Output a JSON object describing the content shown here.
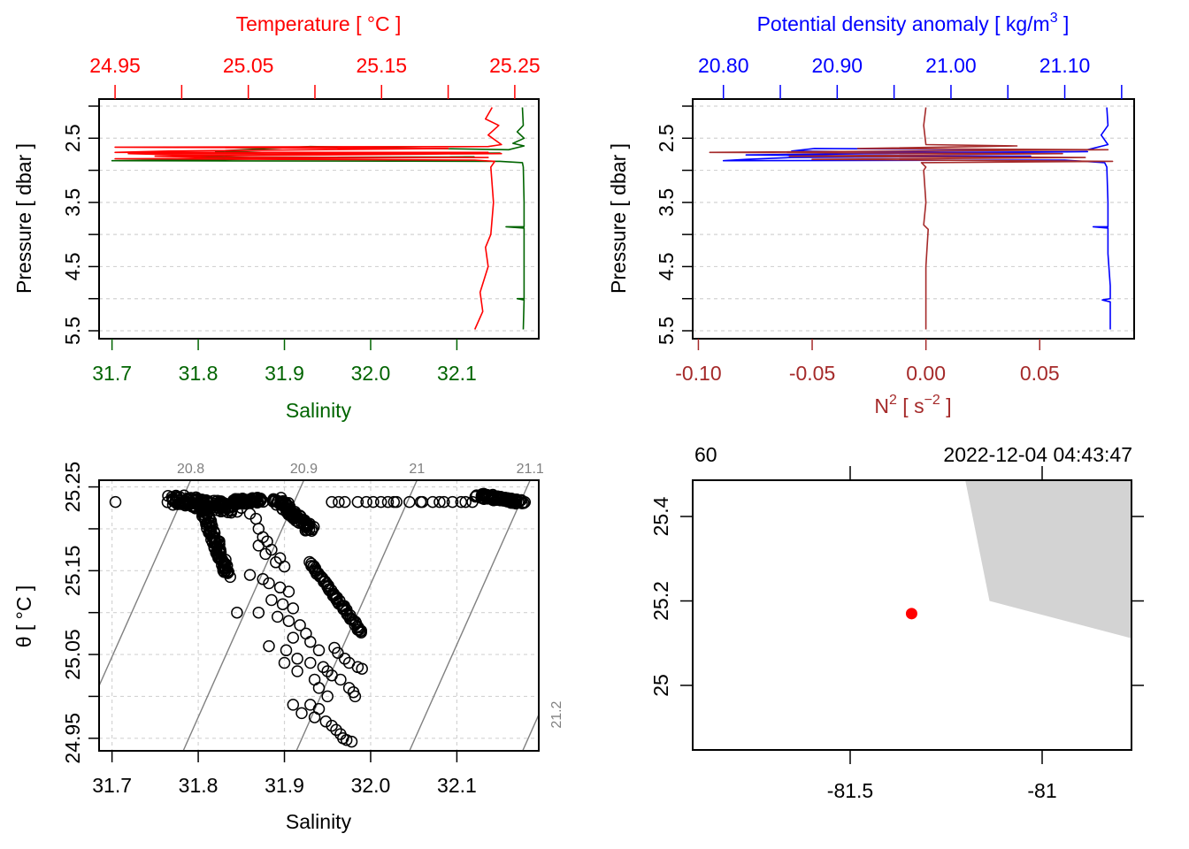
{
  "chart_data": [
    {
      "id": "ts_profile",
      "type": "line",
      "title": "",
      "ylabel": "Pressure [ dbar ]",
      "ylim": [
        2.0,
        5.5
      ],
      "y_reversed": true,
      "y_ticks": [
        2.0,
        2.5,
        3.0,
        3.5,
        4.0,
        4.5,
        5.0,
        5.5
      ],
      "y_tick_labels": [
        "",
        "2.5",
        "",
        "3.5",
        "",
        "4.5",
        "",
        "5.5"
      ],
      "grid": true,
      "bottom_axis": {
        "label": "Salinity",
        "color": "#006400",
        "range": [
          31.685,
          32.195
        ],
        "ticks": [
          31.7,
          31.8,
          31.9,
          32.0,
          32.1
        ],
        "tick_labels": [
          "31.7",
          "31.8",
          "31.9",
          "32.0",
          "32.1"
        ]
      },
      "top_axis": {
        "label": "Temperature [ °C ]",
        "color": "#ff0000",
        "range": [
          24.938,
          25.268
        ],
        "ticks": [
          24.95,
          25.0,
          25.05,
          25.1,
          25.15,
          25.2,
          25.25
        ],
        "tick_labels": [
          "24.95",
          "",
          "25.05",
          "",
          "25.15",
          "",
          "25.25"
        ]
      },
      "series": [
        {
          "name": "Salinity",
          "color": "#006400",
          "axis": "bottom",
          "points": [
            [
              32.176,
              2.02
            ],
            [
              32.177,
              2.3
            ],
            [
              32.17,
              2.4
            ],
            [
              32.178,
              2.5
            ],
            [
              32.165,
              2.58
            ],
            [
              32.178,
              2.62
            ],
            [
              32.16,
              2.68
            ],
            [
              31.93,
              2.63
            ],
            [
              31.82,
              2.7
            ],
            [
              31.9,
              2.73
            ],
            [
              32.0,
              2.75
            ],
            [
              32.15,
              2.73
            ],
            [
              31.87,
              2.76
            ],
            [
              31.8,
              2.78
            ],
            [
              31.86,
              2.8
            ],
            [
              32.12,
              2.79
            ],
            [
              31.88,
              2.82
            ],
            [
              31.84,
              2.83
            ],
            [
              31.7,
              2.85
            ],
            [
              32.15,
              2.86
            ],
            [
              32.176,
              2.88
            ],
            [
              32.177,
              2.95
            ],
            [
              32.178,
              3.5
            ],
            [
              32.178,
              3.88
            ],
            [
              32.157,
              3.88
            ],
            [
              32.178,
              3.9
            ],
            [
              32.178,
              4.2
            ],
            [
              32.178,
              4.6
            ],
            [
              32.178,
              5.0
            ],
            [
              32.17,
              5.0
            ],
            [
              32.178,
              5.02
            ],
            [
              32.177,
              5.48
            ]
          ]
        },
        {
          "name": "Temperature",
          "color": "#ff0000",
          "axis": "top",
          "points": [
            [
              25.233,
              2.02
            ],
            [
              25.228,
              2.2
            ],
            [
              25.238,
              2.3
            ],
            [
              25.23,
              2.45
            ],
            [
              25.24,
              2.6
            ],
            [
              25.23,
              2.63
            ],
            [
              24.95,
              2.64
            ],
            [
              25.2,
              2.66
            ],
            [
              24.99,
              2.7
            ],
            [
              24.95,
              2.72
            ],
            [
              25.23,
              2.72
            ],
            [
              24.96,
              2.74
            ],
            [
              25.0,
              2.76
            ],
            [
              25.24,
              2.74
            ],
            [
              24.98,
              2.78
            ],
            [
              25.02,
              2.8
            ],
            [
              25.23,
              2.8
            ],
            [
              24.95,
              2.82
            ],
            [
              25.22,
              2.84
            ],
            [
              25.235,
              2.86
            ],
            [
              25.232,
              2.95
            ],
            [
              25.234,
              3.5
            ],
            [
              25.232,
              4.0
            ],
            [
              25.228,
              4.2
            ],
            [
              25.23,
              4.5
            ],
            [
              25.224,
              4.9
            ],
            [
              25.226,
              5.2
            ],
            [
              25.22,
              5.48
            ]
          ]
        }
      ]
    },
    {
      "id": "density_n2_profile",
      "type": "line",
      "title": "",
      "ylabel": "Pressure [ dbar ]",
      "ylim": [
        2.0,
        5.5
      ],
      "y_reversed": true,
      "y_ticks": [
        2.0,
        2.5,
        3.0,
        3.5,
        4.0,
        4.5,
        5.0,
        5.5
      ],
      "y_tick_labels": [
        "",
        "2.5",
        "",
        "3.5",
        "",
        "4.5",
        "",
        "5.5"
      ],
      "grid": true,
      "bottom_axis": {
        "label_main": "N",
        "label_sup": "2",
        "label_rest": " [ s",
        "label_sup2": "−2",
        "label_end": " ]",
        "color": "#a52a2a",
        "range": [
          -0.1025,
          0.0915
        ],
        "ticks": [
          -0.1,
          -0.05,
          0.0,
          0.05
        ],
        "tick_labels": [
          "-0.10",
          "-0.05",
          "0.00",
          "0.05"
        ]
      },
      "top_axis": {
        "label_main": "Potential density anomaly [ kg/m",
        "label_sup": "3",
        "label_end": " ]",
        "color": "#0000ff",
        "range": [
          20.773,
          21.161
        ],
        "ticks": [
          20.8,
          20.85,
          20.9,
          20.95,
          21.0,
          21.05,
          21.1,
          21.15
        ],
        "tick_labels": [
          "20.80",
          "",
          "20.90",
          "",
          "21.00",
          "",
          "21.10",
          ""
        ]
      },
      "series": [
        {
          "name": "Potential density anomaly",
          "color": "#0000ff",
          "axis": "top",
          "points": [
            [
              21.137,
              2.02
            ],
            [
              21.138,
              2.3
            ],
            [
              21.132,
              2.45
            ],
            [
              21.138,
              2.6
            ],
            [
              21.12,
              2.68
            ],
            [
              21.06,
              2.68
            ],
            [
              20.88,
              2.66
            ],
            [
              20.86,
              2.7
            ],
            [
              20.99,
              2.72
            ],
            [
              21.12,
              2.71
            ],
            [
              20.88,
              2.75
            ],
            [
              20.82,
              2.76
            ],
            [
              20.95,
              2.78
            ],
            [
              21.07,
              2.78
            ],
            [
              20.86,
              2.8
            ],
            [
              20.82,
              2.83
            ],
            [
              20.8,
              2.85
            ],
            [
              21.1,
              2.84
            ],
            [
              21.135,
              2.88
            ],
            [
              21.137,
              2.95
            ],
            [
              21.138,
              3.5
            ],
            [
              21.138,
              3.88
            ],
            [
              21.125,
              3.88
            ],
            [
              21.138,
              3.9
            ],
            [
              21.138,
              4.3
            ],
            [
              21.14,
              4.8
            ],
            [
              21.14,
              5.0
            ],
            [
              21.133,
              5.02
            ],
            [
              21.14,
              5.05
            ],
            [
              21.14,
              5.48
            ]
          ]
        },
        {
          "name": "N2",
          "color": "#a52a2a",
          "axis": "bottom",
          "points": [
            [
              0.0,
              2.02
            ],
            [
              -0.001,
              2.3
            ],
            [
              0.0,
              2.6
            ],
            [
              0.04,
              2.62
            ],
            [
              -0.03,
              2.66
            ],
            [
              0.08,
              2.68
            ],
            [
              -0.095,
              2.72
            ],
            [
              0.06,
              2.74
            ],
            [
              -0.06,
              2.78
            ],
            [
              0.07,
              2.8
            ],
            [
              -0.05,
              2.83
            ],
            [
              0.082,
              2.86
            ],
            [
              -0.002,
              2.88
            ],
            [
              0.0,
              2.95
            ],
            [
              -0.001,
              3.0
            ],
            [
              0.0,
              3.5
            ],
            [
              -0.001,
              3.85
            ],
            [
              0.001,
              3.92
            ],
            [
              0.0,
              4.5
            ],
            [
              0.0,
              5.48
            ]
          ]
        }
      ]
    },
    {
      "id": "ts_diagram",
      "type": "scatter",
      "title": "",
      "xlabel": "Salinity",
      "ylabel": "θ [ °C ]",
      "xlim": [
        31.685,
        32.195
      ],
      "ylim": [
        24.935,
        25.258
      ],
      "x_ticks": [
        31.7,
        31.8,
        31.9,
        32.0,
        32.1
      ],
      "x_tick_labels": [
        "31.7",
        "31.8",
        "31.9",
        "32.0",
        "32.1"
      ],
      "y_ticks": [
        24.95,
        25.0,
        25.05,
        25.1,
        25.15,
        25.2,
        25.25
      ],
      "y_tick_labels": [
        "24.95",
        "",
        "25.05",
        "",
        "25.15",
        "",
        "25.25"
      ],
      "grid": true,
      "isopycnals": [
        {
          "label": "20.8",
          "sigma": 20.8
        },
        {
          "label": "20.9",
          "sigma": 20.9
        },
        {
          "label": "21",
          "sigma": 21.0
        },
        {
          "label": "21.1",
          "sigma": 21.1
        },
        {
          "label": "21.2",
          "sigma": 21.2
        }
      ],
      "isopycnal_color": "#808080",
      "point_color": "#000000",
      "clusters": [
        {
          "s": [
            31.77,
            31.84
          ],
          "t": [
            25.235,
            25.225
          ],
          "n": 120,
          "spread": 0.008,
          "note": "dense top-left mass"
        },
        {
          "s": [
            31.805,
            31.835
          ],
          "t": [
            25.225,
            25.145
          ],
          "n": 90,
          "spread": 0.004
        },
        {
          "s": [
            31.84,
            31.875
          ],
          "t": [
            25.232,
            25.235
          ],
          "n": 60,
          "spread": 0.004
        },
        {
          "s": [
            31.89,
            31.93
          ],
          "t": [
            25.236,
            25.2
          ],
          "n": 90,
          "spread": 0.005
        },
        {
          "s": [
            31.93,
            31.99
          ],
          "t": [
            25.16,
            25.075
          ],
          "n": 60,
          "spread": 0.002
        },
        {
          "s": [
            32.125,
            32.175
          ],
          "t": [
            25.24,
            25.232
          ],
          "n": 80,
          "spread": 0.004
        }
      ],
      "points": [
        [
          31.704,
          25.232
        ],
        [
          31.955,
          25.232
        ],
        [
          31.963,
          25.232
        ],
        [
          31.97,
          25.232
        ],
        [
          31.985,
          25.232
        ],
        [
          31.995,
          25.232
        ],
        [
          32.003,
          25.232
        ],
        [
          32.012,
          25.232
        ],
        [
          32.02,
          25.232
        ],
        [
          32.027,
          25.232
        ],
        [
          32.03,
          25.232
        ],
        [
          32.045,
          25.232
        ],
        [
          32.058,
          25.232
        ],
        [
          32.06,
          25.232
        ],
        [
          32.072,
          25.232
        ],
        [
          32.08,
          25.232
        ],
        [
          32.085,
          25.232
        ],
        [
          32.095,
          25.232
        ],
        [
          32.105,
          25.232
        ],
        [
          32.11,
          25.232
        ],
        [
          32.118,
          25.232
        ],
        [
          31.85,
          25.225
        ],
        [
          31.86,
          25.218
        ],
        [
          31.867,
          25.212
        ],
        [
          31.87,
          25.2
        ],
        [
          31.875,
          25.19
        ],
        [
          31.88,
          25.185
        ],
        [
          31.87,
          25.18
        ],
        [
          31.885,
          25.175
        ],
        [
          31.878,
          25.17
        ],
        [
          31.895,
          25.165
        ],
        [
          31.89,
          25.16
        ],
        [
          31.9,
          25.155
        ],
        [
          31.86,
          25.145
        ],
        [
          31.875,
          25.14
        ],
        [
          31.882,
          25.135
        ],
        [
          31.895,
          25.13
        ],
        [
          31.905,
          25.125
        ],
        [
          31.885,
          25.115
        ],
        [
          31.898,
          25.11
        ],
        [
          31.91,
          25.105
        ],
        [
          31.87,
          25.1
        ],
        [
          31.892,
          25.095
        ],
        [
          31.905,
          25.09
        ],
        [
          31.918,
          25.085
        ],
        [
          31.925,
          25.075
        ],
        [
          31.91,
          25.07
        ],
        [
          31.93,
          25.065
        ],
        [
          31.882,
          25.06
        ],
        [
          31.902,
          25.055
        ],
        [
          31.94,
          25.055
        ],
        [
          31.915,
          25.045
        ],
        [
          31.93,
          25.04
        ],
        [
          31.945,
          25.035
        ],
        [
          31.95,
          25.03
        ],
        [
          31.955,
          25.025
        ],
        [
          31.965,
          25.02
        ],
        [
          31.975,
          25.01
        ],
        [
          31.98,
          25.005
        ],
        [
          31.982,
          25.0
        ],
        [
          31.9,
          25.04
        ],
        [
          31.915,
          25.03
        ],
        [
          31.935,
          25.02
        ],
        [
          31.94,
          25.01
        ],
        [
          31.95,
          25.0
        ],
        [
          31.93,
          24.99
        ],
        [
          31.94,
          24.985
        ],
        [
          31.935,
          24.975
        ],
        [
          31.948,
          24.97
        ],
        [
          31.955,
          24.965
        ],
        [
          31.96,
          24.96
        ],
        [
          31.965,
          24.955
        ],
        [
          31.968,
          24.95
        ],
        [
          31.972,
          24.948
        ],
        [
          31.978,
          24.946
        ],
        [
          31.845,
          25.1
        ],
        [
          31.91,
          24.99
        ],
        [
          31.92,
          24.98
        ],
        [
          31.958,
          25.058
        ],
        [
          31.962,
          25.052
        ],
        [
          31.97,
          25.045
        ],
        [
          31.975,
          25.04
        ],
        [
          31.985,
          25.035
        ],
        [
          31.99,
          25.033
        ]
      ]
    },
    {
      "id": "station_map",
      "type": "scatter",
      "title": "",
      "top_label_left": "60",
      "top_label_right": "2022-12-04 04:43:47",
      "xlim": [
        -81.91,
        -80.74
      ],
      "ylim": [
        24.845,
        25.485
      ],
      "x_ticks": [
        -81.5,
        -81.0
      ],
      "x_tick_labels": [
        "-81.5",
        "-81"
      ],
      "y_ticks": [
        25.0,
        25.2,
        25.4
      ],
      "y_tick_labels": [
        "25",
        "25.2",
        "25.4"
      ],
      "land_color": "#d3d3d3",
      "land_polygon": [
        [
          -81.2,
          25.485
        ],
        [
          -81.137,
          25.2
        ],
        [
          -80.74,
          25.105
        ],
        [
          -80.74,
          25.485
        ]
      ],
      "station": {
        "lon": -81.34,
        "lat": 25.17,
        "color": "#ff0000"
      }
    }
  ]
}
